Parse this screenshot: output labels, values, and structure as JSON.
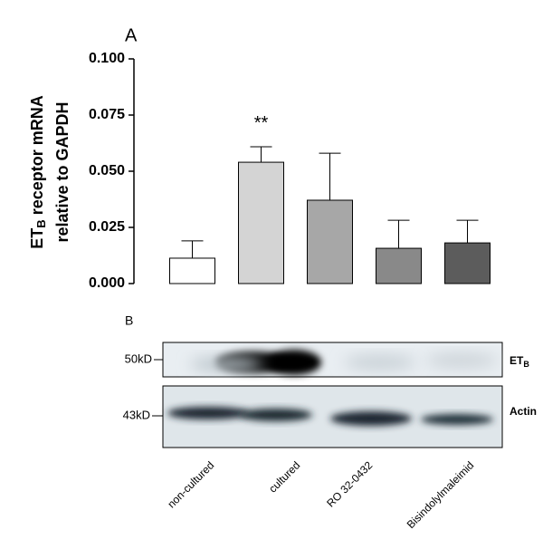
{
  "panel_a": "A",
  "panel_b": "B",
  "chart_data": {
    "type": "bar",
    "ylabel": {
      "main": "ET",
      "sub": "B",
      "rest": " receptor mRNA",
      "line2": "relative to GAPDH"
    },
    "categories": [
      null,
      null,
      null,
      null,
      null
    ],
    "values": [
      0.0113,
      0.054,
      0.0371,
      0.0157,
      0.0181
    ],
    "errors": [
      0.0077,
      0.0069,
      0.0209,
      0.0125,
      0.0101
    ],
    "colors": [
      "#ffffff",
      "#d4d4d4",
      "#a7a7a7",
      "#898989",
      "#5c5c5c"
    ],
    "annotations": [
      {
        "text": "**",
        "index": 1
      }
    ],
    "ylim": [
      0,
      0.1
    ],
    "yticks": [
      {
        "value": 0,
        "label": "0.000"
      },
      0.025,
      {
        "value": 0.05,
        "label": "0.050"
      },
      0.075,
      {
        "value": 0.1,
        "label": "0.100"
      }
    ],
    "grid": false
  },
  "blot": {
    "markers": [
      "50kD",
      "43kD"
    ],
    "proteins": {
      "main": "ET",
      "sub": "B",
      "second": "Actin"
    },
    "lanes": [
      "non-cultured",
      "cultured",
      "RO 32-0432",
      "Bisindolylmaleimid"
    ]
  }
}
